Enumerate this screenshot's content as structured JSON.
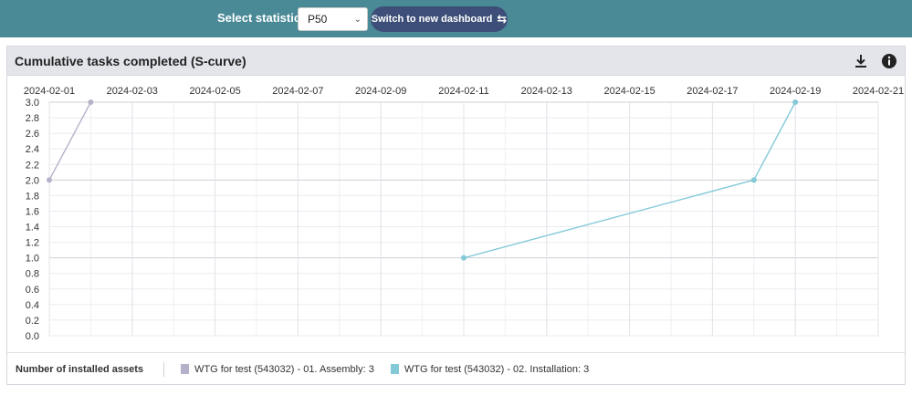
{
  "topbar": {
    "select_label": "Select statistics",
    "select_value": "P50",
    "switch_label": "Switch to new dashboard"
  },
  "panel": {
    "title": "Cumulative tasks completed (S-curve)",
    "icons": [
      "download-icon",
      "info-icon"
    ]
  },
  "legend": {
    "title": "Number of installed assets",
    "items": [
      {
        "label": "WTG for test (543032) - 01. Assembly: 3",
        "color": "#b6b1c9"
      },
      {
        "label": "WTG for test (543032) - 02. Installation: 3",
        "color": "#83c9d8"
      }
    ]
  },
  "chart_data": {
    "type": "line",
    "title": "Cumulative tasks completed (S-curve)",
    "x_ticks": [
      "2024-02-01",
      "2024-02-03",
      "2024-02-05",
      "2024-02-07",
      "2024-02-09",
      "2024-02-11",
      "2024-02-13",
      "2024-02-15",
      "2024-02-17",
      "2024-02-19",
      "2024-02-21"
    ],
    "y_ticks": [
      "0.0",
      "0.2",
      "0.4",
      "0.6",
      "0.8",
      "1.0",
      "1.2",
      "1.4",
      "1.6",
      "1.8",
      "2.0",
      "2.2",
      "2.4",
      "2.6",
      "2.8",
      "3.0"
    ],
    "xlim": [
      "2024-02-01",
      "2024-02-21"
    ],
    "ylim": [
      0,
      3
    ],
    "grid": true,
    "series": [
      {
        "color": "#b6b1c9",
        "points": [
          {
            "x": "2024-02-01",
            "y": 2
          },
          {
            "x": "2024-02-02",
            "y": 3
          }
        ]
      },
      {
        "color": "#83c9d8",
        "points": [
          {
            "x": "2024-02-11",
            "y": 1
          },
          {
            "x": "2024-02-18",
            "y": 2
          },
          {
            "x": "2024-02-19",
            "y": 3
          }
        ]
      }
    ]
  }
}
